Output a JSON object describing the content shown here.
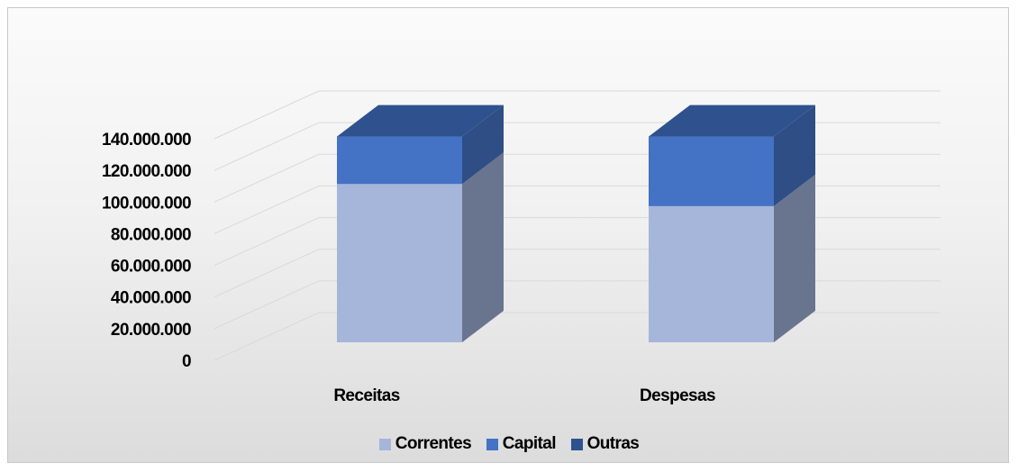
{
  "chart_data": {
    "type": "bar",
    "stacked": true,
    "three_d": true,
    "categories": [
      "Receitas",
      "Despesas"
    ],
    "series": [
      {
        "name": "Correntes",
        "values": [
          100000000,
          86000000
        ],
        "color": "#a6b5da"
      },
      {
        "name": "Capital",
        "values": [
          30000000,
          44000000
        ],
        "color": "#4472c4"
      },
      {
        "name": "Outras",
        "values": [
          0,
          0
        ],
        "color": "#2f528f"
      }
    ],
    "y_ticks": [
      "0",
      "20.000.000",
      "40.000.000",
      "60.000.000",
      "80.000.000",
      "100.000.000",
      "120.000.000",
      "140.000.000"
    ],
    "ylim": [
      0,
      140000000
    ],
    "grid": true,
    "legend_position": "bottom"
  }
}
